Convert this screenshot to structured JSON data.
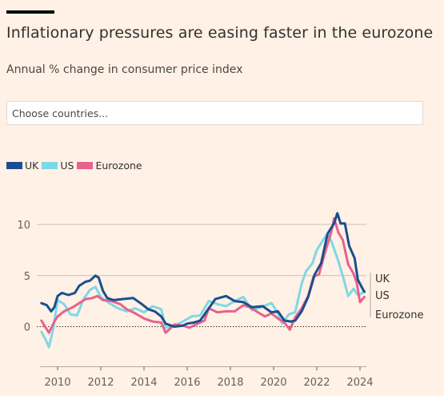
{
  "header": {
    "title": "Inflationary pressures are easing faster in the eurozone",
    "subtitle": "Annual % change in consumer price index"
  },
  "search": {
    "placeholder": "Choose countries..."
  },
  "legend": [
    {
      "label": "UK",
      "color": "#1a4f8f"
    },
    {
      "label": "US",
      "color": "#7fd8e5"
    },
    {
      "label": "Eurozone",
      "color": "#e7628c"
    }
  ],
  "chart_data": {
    "type": "line",
    "title": "Inflationary pressures are easing faster in the eurozone",
    "subtitle": "Annual % change in consumer price index",
    "ylim": [
      -2,
      11
    ],
    "xlim": [
      2009.25,
      2024.3
    ],
    "yticks": [
      0,
      5,
      10
    ],
    "xticks": [
      2010,
      2012,
      2014,
      2016,
      2018,
      2020,
      2022,
      2024
    ],
    "zero_line": "dotted",
    "grid": "horizontal",
    "legend_position": "top-left",
    "series": [
      {
        "name": "UK",
        "color": "#1a4f8f",
        "x": [
          2009.25,
          2009.5,
          2009.7,
          2009.85,
          2010.0,
          2010.2,
          2010.5,
          2010.8,
          2011.0,
          2011.3,
          2011.5,
          2011.75,
          2011.9,
          2012.1,
          2012.3,
          2012.6,
          2013.0,
          2013.5,
          2013.9,
          2014.2,
          2014.5,
          2014.8,
          2015.0,
          2015.4,
          2015.8,
          2016.0,
          2016.3,
          2016.6,
          2017.0,
          2017.3,
          2017.8,
          2018.2,
          2018.6,
          2019.0,
          2019.5,
          2019.9,
          2020.2,
          2020.5,
          2020.8,
          2021.0,
          2021.3,
          2021.6,
          2021.9,
          2022.2,
          2022.5,
          2022.8,
          2022.95,
          2023.1,
          2023.3,
          2023.5,
          2023.75,
          2023.9,
          2024.05,
          2024.2
        ],
        "values": [
          2.3,
          2.1,
          1.5,
          1.9,
          3.0,
          3.3,
          3.1,
          3.3,
          4.0,
          4.4,
          4.5,
          5.0,
          4.8,
          3.5,
          2.8,
          2.6,
          2.7,
          2.8,
          2.2,
          1.7,
          1.5,
          1.0,
          0.3,
          0.0,
          0.1,
          0.3,
          0.4,
          0.6,
          1.8,
          2.7,
          3.0,
          2.5,
          2.4,
          1.9,
          2.0,
          1.4,
          1.5,
          0.6,
          0.5,
          0.6,
          1.5,
          2.9,
          5.1,
          6.2,
          9.1,
          10.1,
          11.1,
          10.1,
          10.1,
          7.9,
          6.7,
          4.6,
          4.0,
          3.4
        ]
      },
      {
        "name": "US",
        "color": "#7fd8e5",
        "x": [
          2009.25,
          2009.45,
          2009.6,
          2009.8,
          2010.0,
          2010.3,
          2010.6,
          2010.9,
          2011.2,
          2011.5,
          2011.75,
          2012.0,
          2012.4,
          2012.8,
          2013.2,
          2013.6,
          2014.0,
          2014.4,
          2014.8,
          2015.0,
          2015.4,
          2015.8,
          2016.2,
          2016.6,
          2017.0,
          2017.4,
          2017.8,
          2018.2,
          2018.6,
          2019.0,
          2019.4,
          2019.9,
          2020.15,
          2020.4,
          2020.7,
          2021.0,
          2021.3,
          2021.5,
          2021.8,
          2022.0,
          2022.3,
          2022.5,
          2022.7,
          2023.0,
          2023.2,
          2023.45,
          2023.7,
          2023.9,
          2024.05,
          2024.2
        ],
        "values": [
          -0.5,
          -1.3,
          -2.0,
          -0.2,
          2.6,
          2.2,
          1.2,
          1.1,
          2.7,
          3.6,
          3.9,
          2.9,
          2.3,
          1.8,
          1.5,
          1.8,
          1.4,
          2.0,
          1.7,
          -0.1,
          0.1,
          0.5,
          1.0,
          1.1,
          2.5,
          2.2,
          2.0,
          2.5,
          2.9,
          1.6,
          1.9,
          2.3,
          1.5,
          0.3,
          1.2,
          1.4,
          4.2,
          5.4,
          6.2,
          7.5,
          8.5,
          9.1,
          8.2,
          6.4,
          5.0,
          3.0,
          3.7,
          3.1,
          3.2,
          3.5
        ]
      },
      {
        "name": "Eurozone",
        "color": "#e7628c",
        "x": [
          2009.25,
          2009.45,
          2009.6,
          2009.85,
          2010.0,
          2010.3,
          2010.7,
          2011.0,
          2011.3,
          2011.6,
          2011.85,
          2012.1,
          2012.5,
          2012.9,
          2013.2,
          2013.6,
          2014.0,
          2014.4,
          2014.8,
          2015.0,
          2015.4,
          2015.8,
          2016.1,
          2016.4,
          2016.8,
          2017.0,
          2017.4,
          2017.8,
          2018.2,
          2018.6,
          2018.9,
          2019.2,
          2019.6,
          2019.9,
          2020.2,
          2020.5,
          2020.75,
          2021.0,
          2021.3,
          2021.6,
          2021.85,
          2022.1,
          2022.4,
          2022.65,
          2022.8,
          2023.0,
          2023.2,
          2023.45,
          2023.7,
          2023.85,
          2024.0,
          2024.2
        ],
        "values": [
          0.6,
          -0.1,
          -0.6,
          0.5,
          1.0,
          1.5,
          1.9,
          2.3,
          2.7,
          2.8,
          3.0,
          2.6,
          2.5,
          2.2,
          1.7,
          1.3,
          0.8,
          0.5,
          0.4,
          -0.6,
          0.2,
          0.1,
          -0.1,
          0.2,
          0.6,
          1.8,
          1.4,
          1.5,
          1.5,
          2.1,
          1.9,
          1.5,
          1.0,
          1.3,
          0.8,
          0.4,
          -0.3,
          0.9,
          1.8,
          3.0,
          4.9,
          5.1,
          7.4,
          9.1,
          10.6,
          9.2,
          8.5,
          6.1,
          5.2,
          4.3,
          2.4,
          2.9
        ]
      }
    ],
    "end_labels": [
      "UK",
      "US",
      "Eurozone"
    ]
  }
}
